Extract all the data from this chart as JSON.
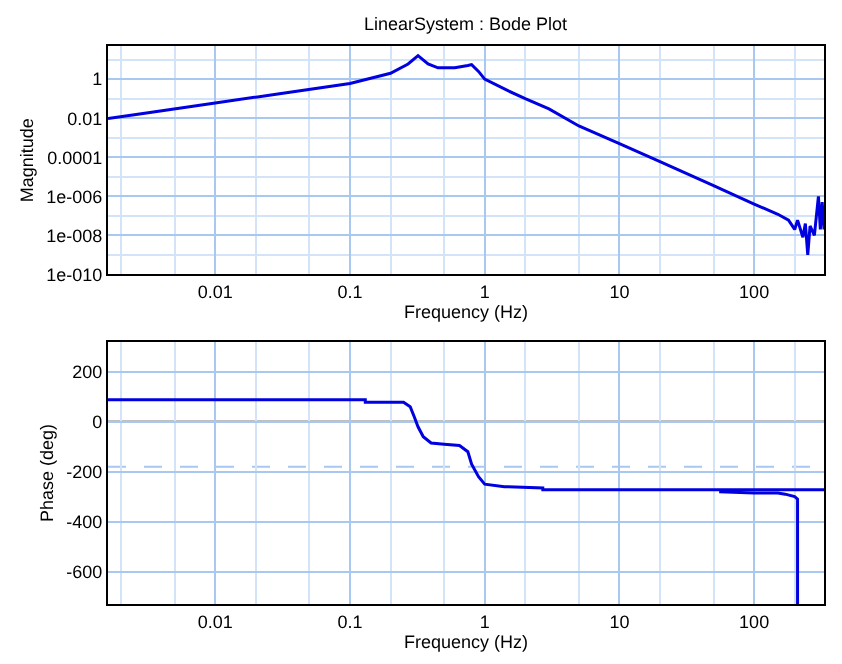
{
  "chart_data": [
    {
      "type": "line",
      "title": "LinearSystem : Bode Plot",
      "xlabel": "Frequency (Hz)",
      "ylabel": "Magnitude",
      "log": "xy",
      "grid": true,
      "xlim": [
        0.0016,
        330
      ],
      "xticks": [
        0.01,
        0.1,
        1,
        10,
        100
      ],
      "ylim": [
        1e-10,
        50
      ],
      "yticks": [
        1,
        0.01,
        {
          "value": 0.0001,
          "label": "0.0001"
        },
        {
          "value": 1e-06,
          "label": "1e-006"
        },
        {
          "value": 1e-08,
          "label": "1e-008"
        },
        {
          "value": 1e-10,
          "label": "1e-010"
        }
      ],
      "series": [
        {
          "color": "#0000e0",
          "x": [
            0.0016,
            0.003,
            0.01,
            0.03,
            0.1,
            0.2,
            0.27,
            0.32,
            0.38,
            0.45,
            0.6,
            0.75,
            0.8,
            0.9,
            1.0,
            1.5,
            2,
            3,
            5,
            10,
            20,
            50,
            100,
            150,
            180,
            200,
            210,
            230,
            240,
            250,
            260,
            280,
            300,
            310,
            320,
            330
          ],
          "values": [
            0.0095,
            0.018,
            0.06,
            0.18,
            0.6,
            2,
            6,
            16,
            6,
            3.8,
            3.8,
            5,
            5.6,
            2.5,
            1,
            0.25,
            0.1,
            0.03,
            0.004,
            0.0005,
            6e-05,
            3.5e-06,
            4e-07,
            1.2e-07,
            6e-08,
            2e-08,
            6e-08,
            8e-09,
            4e-08,
            1e-09,
            3e-08,
            1e-08,
            1e-06,
            2e-08,
            5e-07,
            2e-08
          ]
        }
      ]
    },
    {
      "type": "line",
      "xlabel": "Frequency (Hz)",
      "ylabel": "Phase (deg)",
      "log": "x",
      "grid": true,
      "xlim": [
        0.0016,
        330
      ],
      "xticks": [
        0.01,
        0.1,
        1,
        10,
        100
      ],
      "ylim": [
        -730,
        320
      ],
      "yticks": [
        -600,
        -400,
        -200,
        0,
        200
      ],
      "ref_lines": [
        {
          "axis": "y",
          "value": 0,
          "color": "#000000",
          "line_style": "solid"
        },
        {
          "axis": "y",
          "value": -180,
          "color": "#a8c8f0",
          "line_style": "dashed"
        }
      ],
      "series": [
        {
          "color": "#0000e0",
          "x": [
            0.0016,
            0.13,
            0.13,
            0.25,
            0.28,
            0.3,
            0.32,
            0.35,
            0.4,
            0.5,
            0.65,
            0.75,
            0.8,
            0.9,
            1.0,
            1.4,
            2.7,
            2.7,
            330
          ],
          "values": [
            88,
            88,
            78,
            78,
            60,
            20,
            -20,
            -60,
            -85,
            -90,
            -95,
            -120,
            -170,
            -220,
            -250,
            -260,
            -265,
            -272,
            -272
          ]
        },
        {
          "color": "#0000e0",
          "x": [
            55,
            100,
            150,
            170,
            200,
            210,
            210
          ],
          "values": [
            -280,
            -285,
            -285,
            -290,
            -300,
            -310,
            -730
          ]
        }
      ]
    }
  ]
}
